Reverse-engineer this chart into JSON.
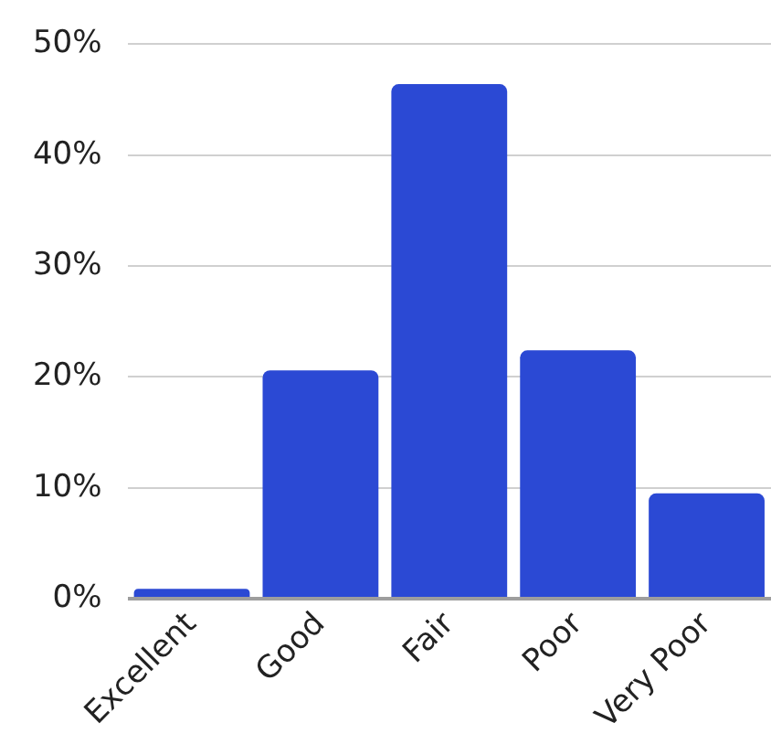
{
  "chart_data": {
    "type": "bar",
    "categories": [
      "Excellent",
      "Good",
      "Fair",
      "Poor",
      "Very Poor"
    ],
    "values": [
      0.9,
      20.6,
      46.4,
      22.4,
      9.5
    ],
    "color": "#2b49d4",
    "ylim": [
      0,
      50
    ],
    "yticks": [
      {
        "value": 0,
        "label": "0%"
      },
      {
        "value": 10,
        "label": "10%"
      },
      {
        "value": 20,
        "label": "20%"
      },
      {
        "value": 30,
        "label": "30%"
      },
      {
        "value": 40,
        "label": "40%"
      },
      {
        "value": 50,
        "label": "50%"
      }
    ],
    "grid": "y",
    "legend": false
  }
}
